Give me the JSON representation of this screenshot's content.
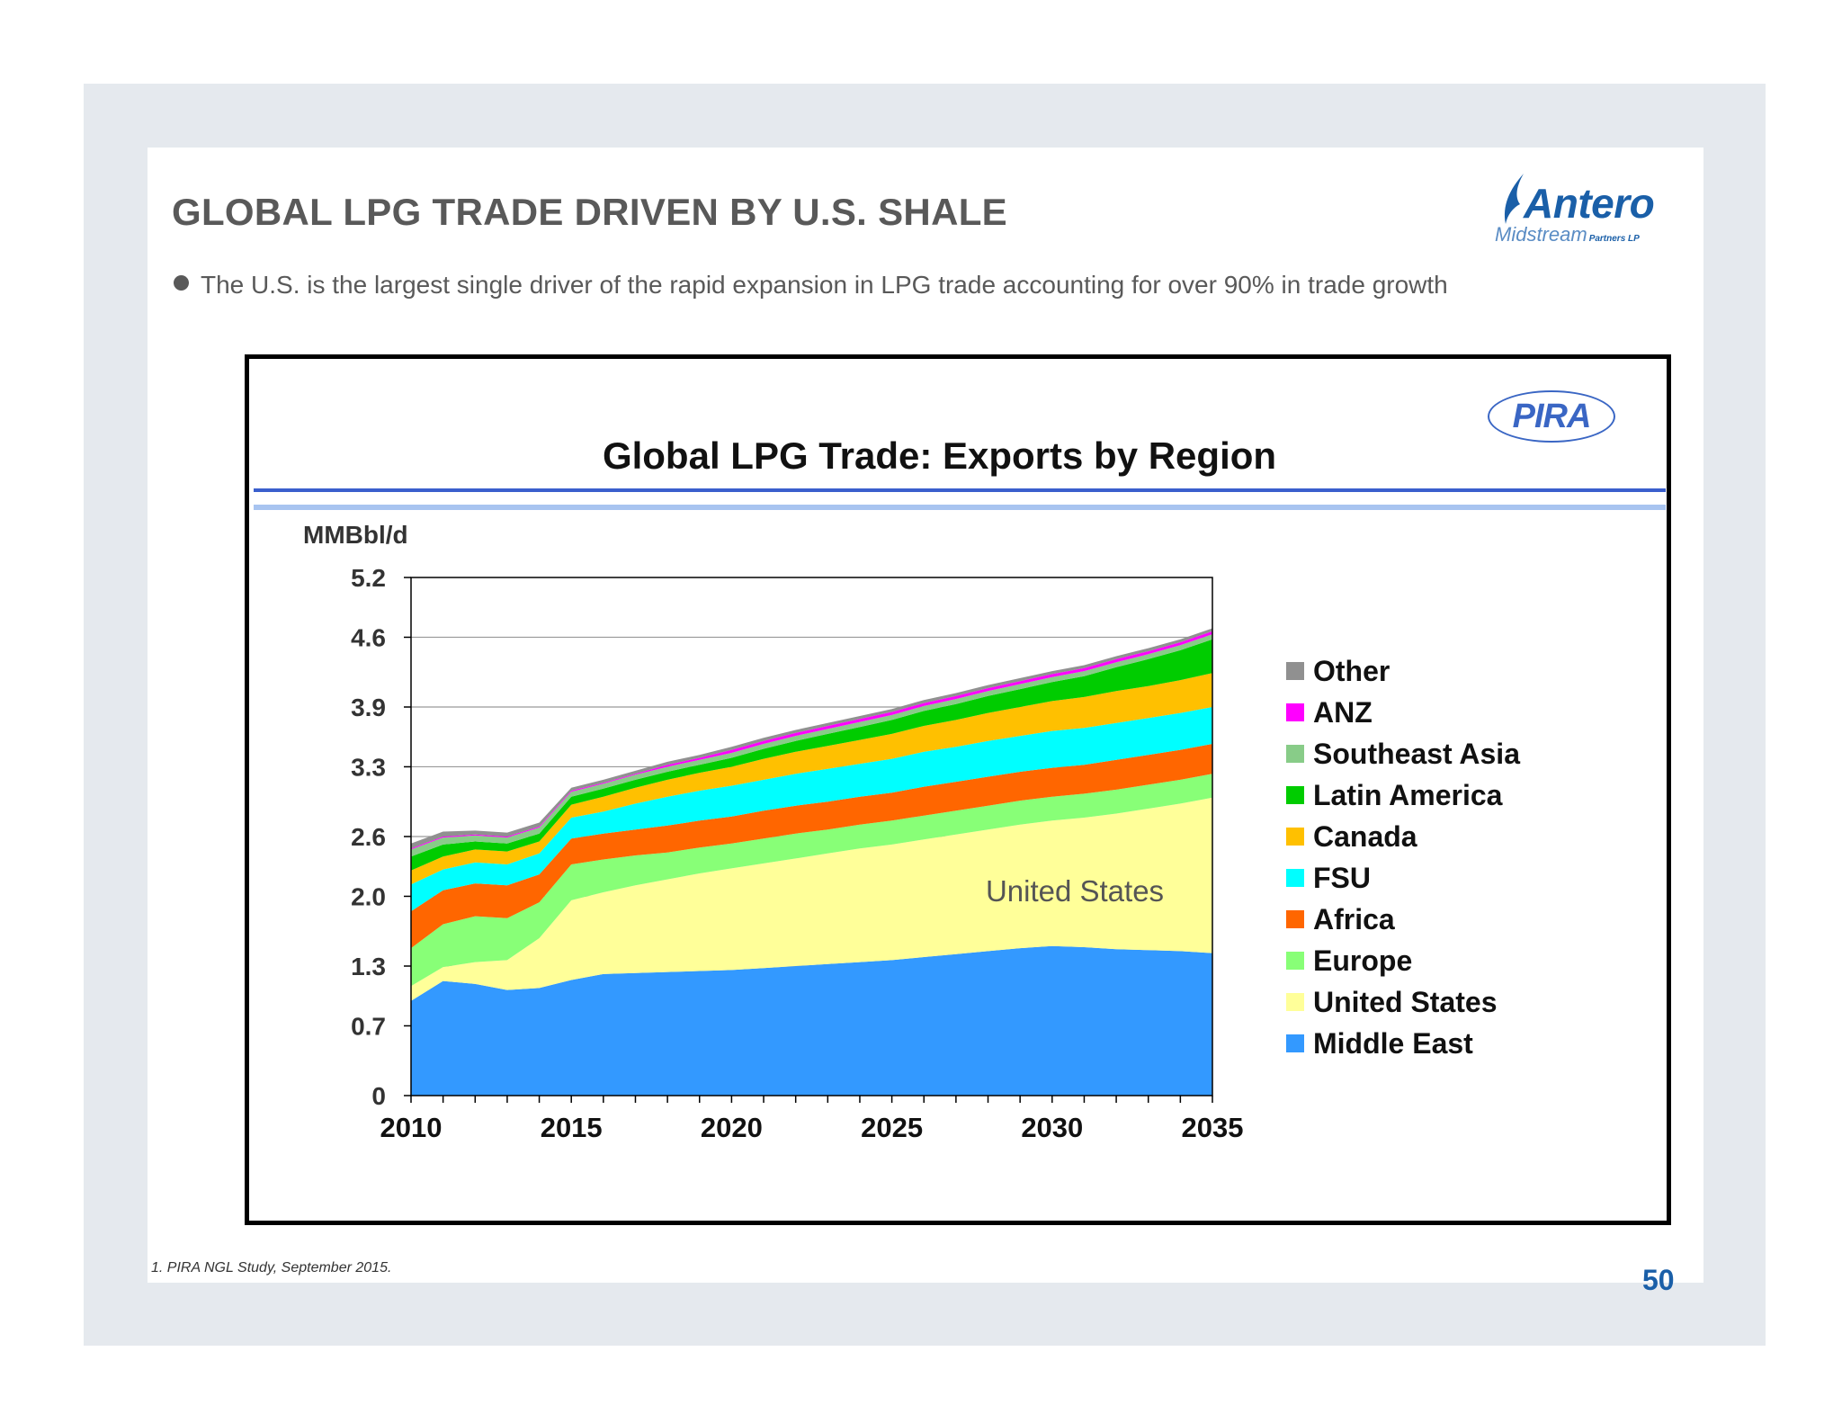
{
  "slide": {
    "title": "GLOBAL LPG TRADE DRIVEN BY U.S. SHALE",
    "bullet": "The U.S. is the largest single driver of the rapid expansion in LPG trade accounting for over 90% in trade growth",
    "footnote": "1. PIRA NGL Study, September 2015.",
    "page_number": "50"
  },
  "logo": {
    "name": "Antero",
    "sub": "Midstream",
    "sub2": "Partners LP"
  },
  "chart_badge": "PIRA",
  "chart_data": {
    "type": "area",
    "title": "Global LPG Trade: Exports by Region",
    "ylabel": "MMBbl/d",
    "xlabel": "",
    "ylim": [
      0,
      5.2
    ],
    "xlim": [
      2010,
      2035
    ],
    "y_ticks": [
      "0",
      "0.7",
      "1.3",
      "2.0",
      "2.6",
      "3.3",
      "3.9",
      "4.6",
      "5.2"
    ],
    "x_ticks": [
      "2010",
      "2015",
      "2020",
      "2025",
      "2030",
      "2035"
    ],
    "grid": "horizontal",
    "legend_position": "right",
    "annotation": "United States",
    "x": [
      2010,
      2011,
      2012,
      2013,
      2014,
      2015,
      2016,
      2017,
      2018,
      2019,
      2020,
      2021,
      2022,
      2023,
      2024,
      2025,
      2026,
      2027,
      2028,
      2029,
      2030,
      2031,
      2032,
      2033,
      2034,
      2035
    ],
    "series": [
      {
        "name": "Middle East",
        "color": "#3399ff",
        "values": [
          0.95,
          1.15,
          1.12,
          1.06,
          1.08,
          1.16,
          1.22,
          1.23,
          1.24,
          1.25,
          1.26,
          1.28,
          1.3,
          1.32,
          1.34,
          1.36,
          1.39,
          1.42,
          1.45,
          1.48,
          1.5,
          1.49,
          1.47,
          1.46,
          1.45,
          1.43
        ]
      },
      {
        "name": "United States",
        "color": "#ffff99",
        "values": [
          0.15,
          0.14,
          0.22,
          0.3,
          0.5,
          0.8,
          0.82,
          0.88,
          0.93,
          0.98,
          1.02,
          1.05,
          1.08,
          1.11,
          1.14,
          1.16,
          1.18,
          1.2,
          1.22,
          1.24,
          1.26,
          1.3,
          1.36,
          1.42,
          1.48,
          1.56
        ]
      },
      {
        "name": "Europe",
        "color": "#88ff77",
        "values": [
          0.38,
          0.43,
          0.46,
          0.42,
          0.36,
          0.36,
          0.33,
          0.3,
          0.27,
          0.26,
          0.25,
          0.25,
          0.25,
          0.24,
          0.24,
          0.24,
          0.24,
          0.24,
          0.24,
          0.24,
          0.24,
          0.24,
          0.24,
          0.24,
          0.24,
          0.24
        ]
      },
      {
        "name": "Africa",
        "color": "#ff6600",
        "values": [
          0.37,
          0.34,
          0.33,
          0.33,
          0.28,
          0.26,
          0.26,
          0.26,
          0.27,
          0.27,
          0.27,
          0.28,
          0.28,
          0.28,
          0.28,
          0.28,
          0.29,
          0.29,
          0.29,
          0.29,
          0.29,
          0.29,
          0.3,
          0.3,
          0.3,
          0.3
        ]
      },
      {
        "name": "FSU",
        "color": "#00ffff",
        "values": [
          0.27,
          0.21,
          0.21,
          0.21,
          0.21,
          0.21,
          0.22,
          0.26,
          0.29,
          0.3,
          0.31,
          0.31,
          0.32,
          0.33,
          0.33,
          0.34,
          0.35,
          0.35,
          0.36,
          0.36,
          0.37,
          0.37,
          0.37,
          0.37,
          0.37,
          0.37
        ]
      },
      {
        "name": "Canada",
        "color": "#ffc000",
        "values": [
          0.14,
          0.13,
          0.13,
          0.13,
          0.12,
          0.13,
          0.15,
          0.16,
          0.17,
          0.18,
          0.19,
          0.21,
          0.22,
          0.23,
          0.24,
          0.25,
          0.26,
          0.27,
          0.28,
          0.29,
          0.3,
          0.31,
          0.32,
          0.32,
          0.33,
          0.34
        ]
      },
      {
        "name": "Latin America",
        "color": "#00cc00",
        "values": [
          0.14,
          0.12,
          0.08,
          0.08,
          0.08,
          0.08,
          0.08,
          0.08,
          0.08,
          0.08,
          0.09,
          0.1,
          0.11,
          0.12,
          0.13,
          0.14,
          0.15,
          0.16,
          0.17,
          0.18,
          0.19,
          0.21,
          0.24,
          0.27,
          0.3,
          0.34
        ]
      },
      {
        "name": "Southeast Asia",
        "color": "#88cc88",
        "values": [
          0.07,
          0.07,
          0.06,
          0.06,
          0.06,
          0.05,
          0.05,
          0.05,
          0.05,
          0.05,
          0.05,
          0.05,
          0.05,
          0.05,
          0.05,
          0.05,
          0.05,
          0.05,
          0.05,
          0.05,
          0.05,
          0.05,
          0.05,
          0.05,
          0.05,
          0.05
        ]
      },
      {
        "name": "ANZ",
        "color": "#ff00ff",
        "values": [
          0.01,
          0.01,
          0.01,
          0.01,
          0.01,
          0.01,
          0.01,
          0.01,
          0.02,
          0.02,
          0.03,
          0.03,
          0.03,
          0.03,
          0.03,
          0.03,
          0.03,
          0.03,
          0.03,
          0.03,
          0.03,
          0.03,
          0.03,
          0.03,
          0.03,
          0.03
        ]
      },
      {
        "name": "Other",
        "color": "#909090",
        "values": [
          0.05,
          0.05,
          0.04,
          0.04,
          0.04,
          0.03,
          0.03,
          0.03,
          0.03,
          0.03,
          0.03,
          0.03,
          0.03,
          0.03,
          0.03,
          0.03,
          0.03,
          0.03,
          0.03,
          0.03,
          0.03,
          0.03,
          0.03,
          0.03,
          0.03,
          0.03
        ]
      }
    ]
  }
}
